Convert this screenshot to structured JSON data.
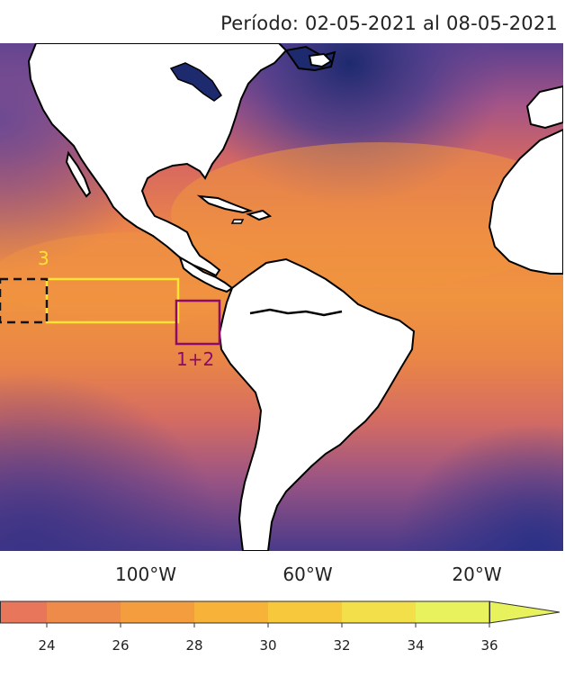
{
  "period": "Período: 02-05-2021 al 08-05-2021",
  "regions": [
    {
      "label": "3",
      "color": "#ffe433"
    },
    {
      "label": "1+2",
      "color": "#8b0a6a"
    }
  ],
  "longitude_labels": [
    "100°W",
    "60°W",
    "20°W"
  ],
  "colorbar": {
    "ticks": [
      "24",
      "26",
      "28",
      "30",
      "32",
      "34",
      "36"
    ],
    "colors": [
      "#e8765a",
      "#ee8a4a",
      "#f49d3e",
      "#f7b239",
      "#f8c83c",
      "#f2df4a",
      "#e8f25c"
    ],
    "extend": "max"
  },
  "palette": {
    "deep": "#2a2f7a",
    "cool": "#6a4692",
    "mid": "#b95a7c",
    "warm": "#e07a4e",
    "hot": "#f0953e",
    "land": "#ffffff",
    "coast": "#000000"
  }
}
